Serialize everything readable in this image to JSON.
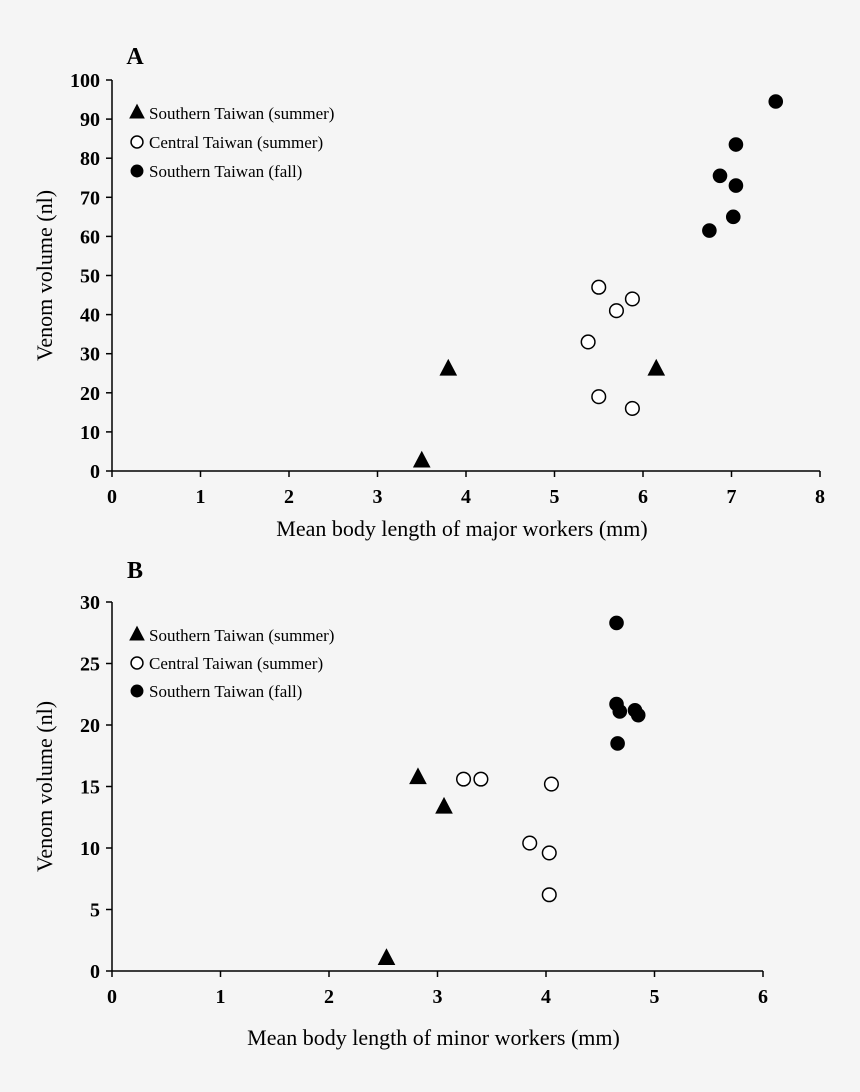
{
  "chart_data": [
    {
      "type": "scatter",
      "panel_label": "A",
      "xlabel": "Mean body length of major workers (mm)",
      "ylabel": "Venom volume (nl)",
      "xlim": [
        0,
        8
      ],
      "ylim": [
        0,
        100
      ],
      "xticks": [
        0,
        1,
        2,
        3,
        4,
        5,
        6,
        7,
        8
      ],
      "yticks": [
        0,
        10,
        20,
        30,
        40,
        50,
        60,
        70,
        80,
        90,
        100
      ],
      "grid": false,
      "legend_position": "top-left",
      "series": [
        {
          "name": "Southern Taiwan (summer)",
          "marker": "filled-triangle",
          "points": [
            [
              3.5,
              2.5
            ],
            [
              3.8,
              26
            ],
            [
              6.15,
              26
            ]
          ]
        },
        {
          "name": "Central Taiwan (summer)",
          "marker": "open-circle",
          "points": [
            [
              5.5,
              47
            ],
            [
              5.88,
              44
            ],
            [
              5.7,
              41
            ],
            [
              5.38,
              33
            ],
            [
              5.5,
              19
            ],
            [
              5.88,
              16
            ]
          ]
        },
        {
          "name": "Southern Taiwan (fall)",
          "marker": "filled-circle",
          "points": [
            [
              7.5,
              94.5
            ],
            [
              7.05,
              83.5
            ],
            [
              6.87,
              75.5
            ],
            [
              7.05,
              73
            ],
            [
              7.02,
              65
            ],
            [
              6.75,
              61.5
            ]
          ]
        }
      ]
    },
    {
      "type": "scatter",
      "panel_label": "B",
      "xlabel": "Mean body length of minor workers (mm)",
      "ylabel": "Venom volume (nl)",
      "xlim": [
        0,
        6
      ],
      "ylim": [
        0,
        30
      ],
      "xticks": [
        0,
        1,
        2,
        3,
        4,
        5,
        6
      ],
      "yticks": [
        0,
        5,
        10,
        15,
        20,
        25,
        30
      ],
      "grid": false,
      "legend_position": "top-left",
      "series": [
        {
          "name": "Southern Taiwan (summer)",
          "marker": "filled-triangle",
          "points": [
            [
              2.53,
              1.0
            ],
            [
              2.82,
              15.7
            ],
            [
              3.06,
              13.3
            ]
          ]
        },
        {
          "name": "Central Taiwan (summer)",
          "marker": "open-circle",
          "points": [
            [
              3.24,
              15.6
            ],
            [
              3.4,
              15.6
            ],
            [
              4.05,
              15.2
            ],
            [
              3.85,
              10.4
            ],
            [
              4.03,
              9.6
            ],
            [
              4.03,
              6.2
            ]
          ]
        },
        {
          "name": "Southern Taiwan (fall)",
          "marker": "filled-circle",
          "points": [
            [
              4.65,
              28.3
            ],
            [
              4.65,
              21.7
            ],
            [
              4.68,
              21.1
            ],
            [
              4.82,
              21.2
            ],
            [
              4.85,
              20.8
            ],
            [
              4.66,
              18.5
            ]
          ]
        }
      ]
    }
  ]
}
